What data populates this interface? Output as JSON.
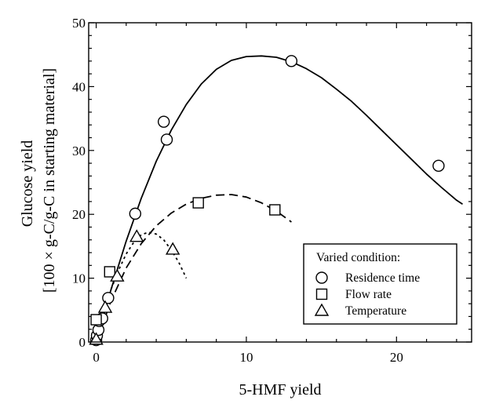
{
  "chart_data": {
    "type": "scatter",
    "title": "",
    "xlabel": "5-HMF yield",
    "ylabel_line1": "Glucose yield",
    "ylabel_line2": "[100 × g-C/g-C in starting material]",
    "xlim": [
      -0.5,
      25
    ],
    "ylim": [
      0,
      50
    ],
    "x_ticks": [
      0,
      10,
      20
    ],
    "y_ticks": [
      0,
      10,
      20,
      30,
      40,
      50
    ],
    "legend_title": "Varied condition:",
    "legend_position": "bottom-right",
    "series": [
      {
        "name": "Residence time",
        "marker": "circle",
        "points": [
          [
            0,
            0.3
          ],
          [
            0.05,
            1.0
          ],
          [
            0.15,
            1.9
          ],
          [
            0.2,
            3.3
          ],
          [
            0.4,
            3.7
          ],
          [
            0.8,
            6.9
          ],
          [
            2.6,
            20.1
          ],
          [
            4.5,
            34.5
          ],
          [
            4.7,
            31.7
          ],
          [
            13.0,
            44.0
          ],
          [
            22.8,
            27.6
          ]
        ],
        "fit": {
          "style": "solid",
          "points": [
            [
              0,
              0
            ],
            [
              1,
              8.3
            ],
            [
              2,
              15.8
            ],
            [
              3,
              22.5
            ],
            [
              4,
              28.3
            ],
            [
              5,
              33.2
            ],
            [
              6,
              37.2
            ],
            [
              7,
              40.4
            ],
            [
              8,
              42.7
            ],
            [
              9,
              44.1
            ],
            [
              10,
              44.7
            ],
            [
              11,
              44.8
            ],
            [
              12,
              44.6
            ],
            [
              13,
              43.9
            ],
            [
              14,
              42.8
            ],
            [
              15,
              41.4
            ],
            [
              16,
              39.6
            ],
            [
              17,
              37.7
            ],
            [
              18,
              35.5
            ],
            [
              19,
              33.2
            ],
            [
              20,
              30.9
            ],
            [
              21,
              28.6
            ],
            [
              22,
              26.3
            ],
            [
              23,
              24.2
            ],
            [
              24,
              22.2
            ],
            [
              24.4,
              21.6
            ]
          ]
        }
      },
      {
        "name": "Flow rate",
        "marker": "square",
        "points": [
          [
            0,
            3.5
          ],
          [
            0.9,
            11.0
          ],
          [
            6.8,
            21.8
          ],
          [
            11.9,
            20.7
          ]
        ],
        "fit": {
          "style": "dashed",
          "points": [
            [
              0,
              0
            ],
            [
              1,
              6.5
            ],
            [
              2,
              11.6
            ],
            [
              3,
              15.4
            ],
            [
              4,
              18.2
            ],
            [
              5,
              20.2
            ],
            [
              6,
              21.6
            ],
            [
              7,
              22.5
            ],
            [
              8,
              23.0
            ],
            [
              9,
              23.1
            ],
            [
              10,
              22.7
            ],
            [
              11,
              21.8
            ],
            [
              12,
              20.5
            ],
            [
              13,
              18.8
            ]
          ]
        }
      },
      {
        "name": "Temperature",
        "marker": "triangle",
        "points": [
          [
            0,
            0.4
          ],
          [
            0.6,
            5.4
          ],
          [
            1.4,
            10.3
          ],
          [
            2.7,
            16.5
          ],
          [
            5.1,
            14.5
          ]
        ],
        "fit": {
          "style": "dotted",
          "points": [
            [
              0,
              0
            ],
            [
              0.5,
              4.5
            ],
            [
              1,
              8.3
            ],
            [
              1.5,
              11.3
            ],
            [
              2,
              13.8
            ],
            [
              2.5,
              15.6
            ],
            [
              3,
              16.8
            ],
            [
              3.5,
              17.2
            ],
            [
              4,
              16.9
            ],
            [
              4.5,
              16.0
            ],
            [
              5,
              14.4
            ],
            [
              5.5,
              12.5
            ],
            [
              6,
              10.0
            ]
          ]
        }
      }
    ]
  }
}
